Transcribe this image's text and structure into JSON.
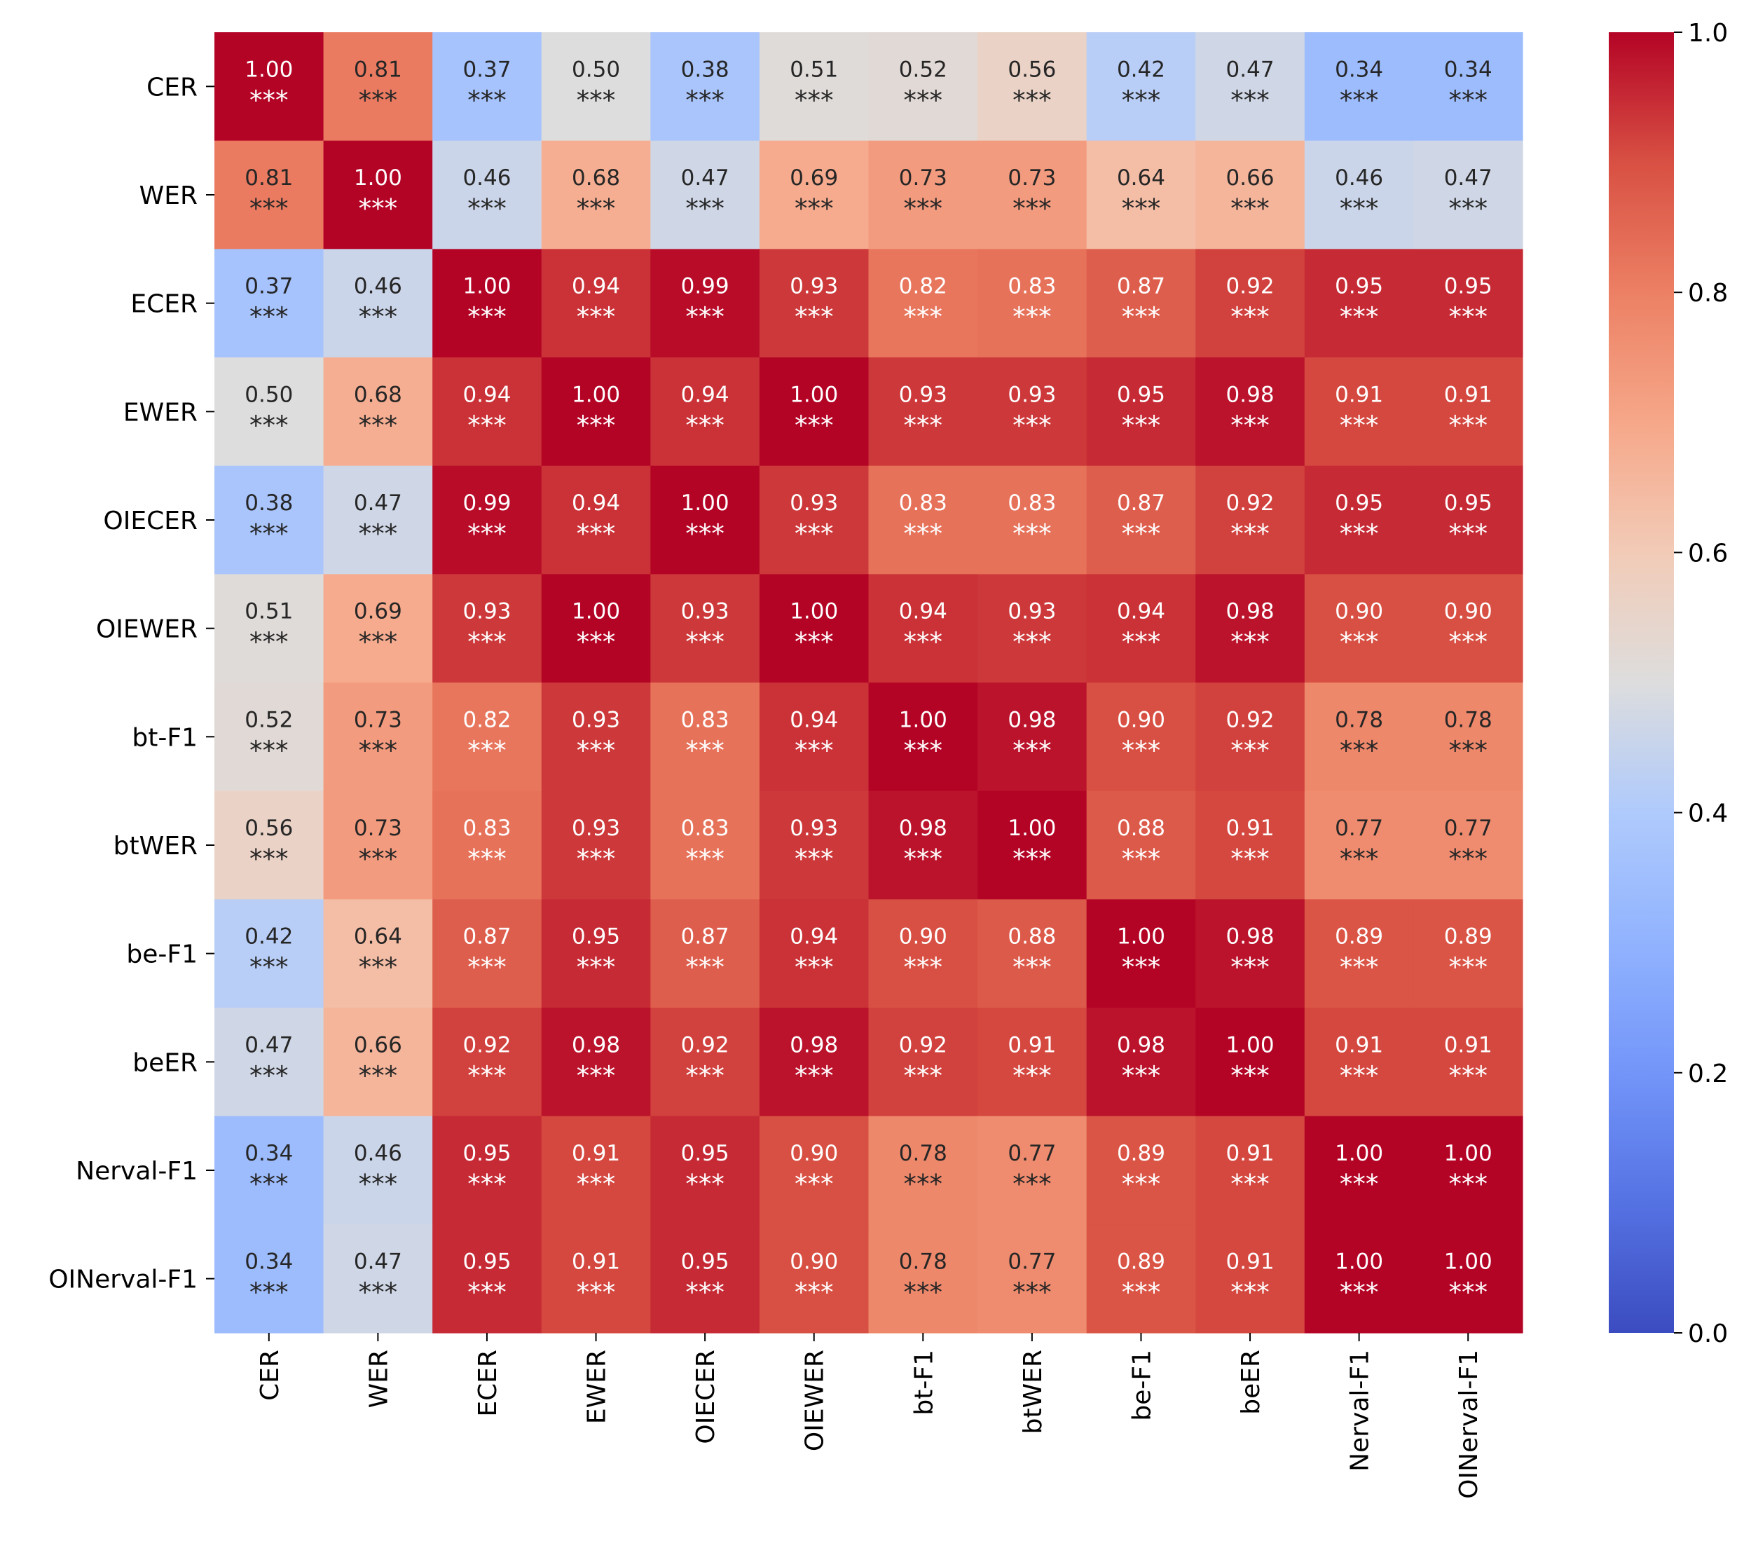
{
  "chart_data": {
    "type": "heatmap",
    "labels": [
      "CER",
      "WER",
      "ECER",
      "EWER",
      "OIECER",
      "OIEWER",
      "bt-F1",
      "btWER",
      "be-F1",
      "beER",
      "Nerval-F1",
      "OINerval-F1"
    ],
    "matrix": [
      [
        1.0,
        0.81,
        0.37,
        0.5,
        0.38,
        0.51,
        0.52,
        0.56,
        0.42,
        0.47,
        0.34,
        0.34
      ],
      [
        0.81,
        1.0,
        0.46,
        0.68,
        0.47,
        0.69,
        0.73,
        0.73,
        0.64,
        0.66,
        0.46,
        0.47
      ],
      [
        0.37,
        0.46,
        1.0,
        0.94,
        0.99,
        0.93,
        0.82,
        0.83,
        0.87,
        0.92,
        0.95,
        0.95
      ],
      [
        0.5,
        0.68,
        0.94,
        1.0,
        0.94,
        1.0,
        0.93,
        0.93,
        0.95,
        0.98,
        0.91,
        0.91
      ],
      [
        0.38,
        0.47,
        0.99,
        0.94,
        1.0,
        0.93,
        0.83,
        0.83,
        0.87,
        0.92,
        0.95,
        0.95
      ],
      [
        0.51,
        0.69,
        0.93,
        1.0,
        0.93,
        1.0,
        0.94,
        0.93,
        0.94,
        0.98,
        0.9,
        0.9
      ],
      [
        0.52,
        0.73,
        0.82,
        0.93,
        0.83,
        0.94,
        1.0,
        0.98,
        0.9,
        0.92,
        0.78,
        0.78
      ],
      [
        0.56,
        0.73,
        0.83,
        0.93,
        0.83,
        0.93,
        0.98,
        1.0,
        0.88,
        0.91,
        0.77,
        0.77
      ],
      [
        0.42,
        0.64,
        0.87,
        0.95,
        0.87,
        0.94,
        0.9,
        0.88,
        1.0,
        0.98,
        0.89,
        0.89
      ],
      [
        0.47,
        0.66,
        0.92,
        0.98,
        0.92,
        0.98,
        0.92,
        0.91,
        0.98,
        1.0,
        0.91,
        0.91
      ],
      [
        0.34,
        0.46,
        0.95,
        0.91,
        0.95,
        0.9,
        0.78,
        0.77,
        0.89,
        0.91,
        1.0,
        1.0
      ],
      [
        0.34,
        0.47,
        0.95,
        0.91,
        0.95,
        0.9,
        0.78,
        0.77,
        0.89,
        0.91,
        1.0,
        1.0
      ]
    ],
    "significance": "***",
    "value_format": "2 decimals",
    "colormap": "coolwarm",
    "colorbar": {
      "range": [
        0.0,
        1.0
      ],
      "ticks": [
        "0.0",
        "0.2",
        "0.4",
        "0.6",
        "0.8",
        "1.0"
      ],
      "placement": "right"
    },
    "title": "",
    "xlabel": "",
    "ylabel": "",
    "grid": false,
    "x_tick_rotation": "vertical"
  }
}
